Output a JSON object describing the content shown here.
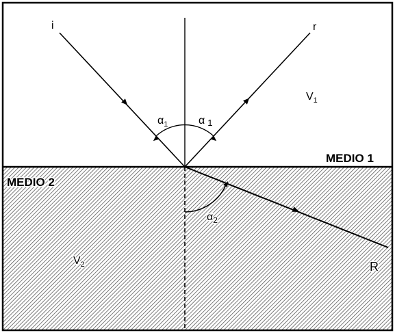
{
  "rays": {
    "incident": "i",
    "reflected": "r",
    "refracted": "R"
  },
  "angles": {
    "incident": {
      "symbol": "α",
      "sub": "1"
    },
    "reflected": {
      "symbol": "α",
      "sub": "1"
    },
    "refracted": {
      "symbol": "α",
      "sub": "2"
    }
  },
  "media": {
    "upper": {
      "label": "MEDIO 1",
      "velocity": "V",
      "velocity_sub": "1"
    },
    "lower": {
      "label": "MEDIO 2",
      "velocity": "V",
      "velocity_sub": "2"
    }
  }
}
